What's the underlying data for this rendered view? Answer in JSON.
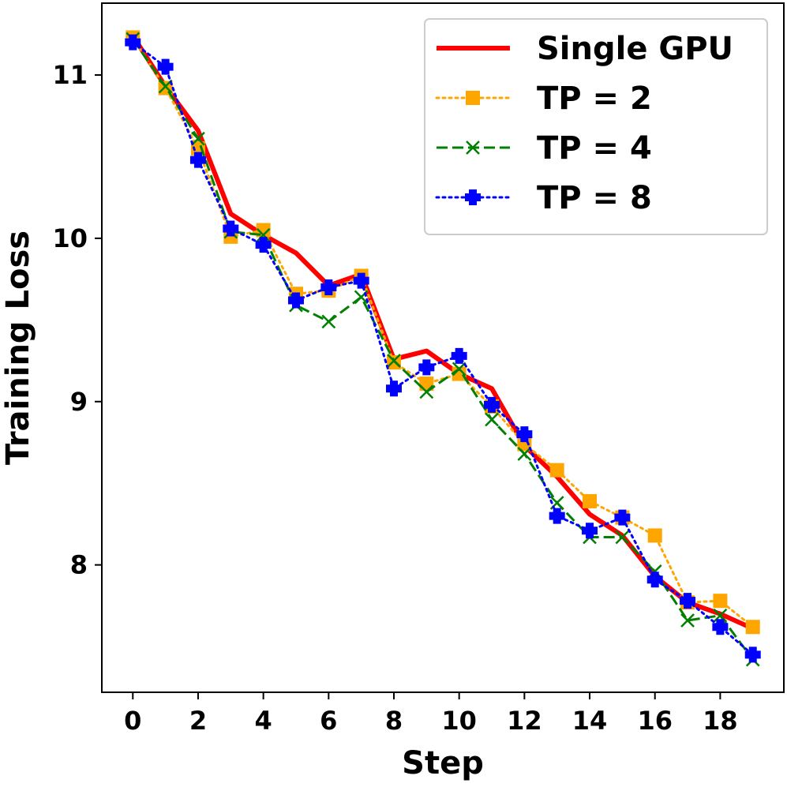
{
  "chart_data": {
    "type": "line",
    "title": "",
    "xlabel": "Step",
    "ylabel": "Training Loss",
    "xlim": [
      -0.95,
      19.95
    ],
    "ylim": [
      7.22,
      11.44
    ],
    "xticks": [
      0,
      2,
      4,
      6,
      8,
      10,
      12,
      14,
      16,
      18
    ],
    "yticks": [
      8,
      9,
      10,
      11
    ],
    "legend_position": "top-right",
    "grid": false,
    "x": [
      0,
      1,
      2,
      3,
      4,
      5,
      6,
      7,
      8,
      9,
      10,
      11,
      12,
      13,
      14,
      15,
      16,
      17,
      18,
      19
    ],
    "series": [
      {
        "name": "Single GPU",
        "color": "#ff0000",
        "style": "solid",
        "marker": "none",
        "values": [
          11.24,
          10.93,
          10.66,
          10.15,
          10.02,
          9.91,
          9.71,
          9.78,
          9.26,
          9.31,
          9.17,
          9.08,
          8.73,
          8.54,
          8.31,
          8.18,
          7.93,
          7.77,
          7.7,
          7.61
        ]
      },
      {
        "name": "TP = 2",
        "color": "#ffa500",
        "style": "dotted",
        "marker": "square",
        "values": [
          11.23,
          10.92,
          10.55,
          10.01,
          10.05,
          9.66,
          9.68,
          9.77,
          9.24,
          9.11,
          9.17,
          8.97,
          8.74,
          8.58,
          8.39,
          8.29,
          8.18,
          7.77,
          7.78,
          7.62
        ]
      },
      {
        "name": "TP = 4",
        "color": "#008000",
        "style": "dashed",
        "marker": "x",
        "values": [
          11.22,
          10.93,
          10.61,
          10.04,
          10.02,
          9.59,
          9.49,
          9.64,
          9.25,
          9.06,
          9.2,
          8.89,
          8.68,
          8.38,
          8.17,
          8.17,
          7.96,
          7.66,
          7.69,
          7.42
        ]
      },
      {
        "name": "TP = 8",
        "color": "#0000ff",
        "style": "dotted",
        "marker": "plus",
        "values": [
          11.2,
          11.05,
          10.48,
          10.06,
          9.96,
          9.62,
          9.7,
          9.74,
          9.08,
          9.21,
          9.28,
          8.98,
          8.8,
          8.3,
          8.21,
          8.29,
          7.91,
          7.78,
          7.62,
          7.45
        ]
      }
    ]
  }
}
